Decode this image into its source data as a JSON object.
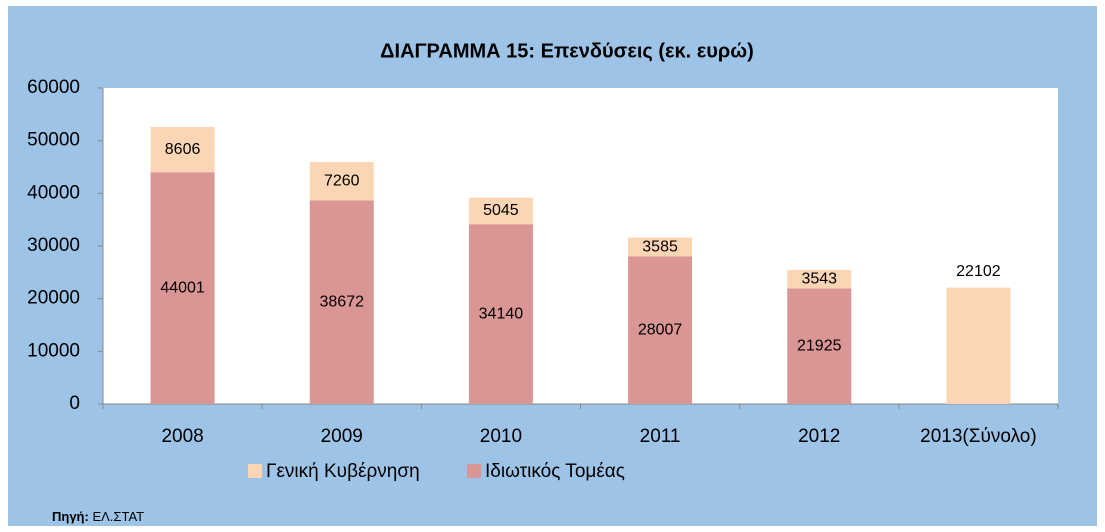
{
  "chart_data": {
    "type": "stacked_bar",
    "title": "ΔΙΑΓΡΑΜΜΑ 15: Επενδύσεις (εκ. ευρώ)",
    "categories": [
      "2008",
      "2009",
      "2010",
      "2011",
      "2012",
      "2013(Σύνολο)"
    ],
    "series": [
      {
        "name": "Γενική Κυβέρνηση",
        "color": "#FCD5B5",
        "values": [
          8606,
          7260,
          5045,
          3585,
          3543,
          22102
        ]
      },
      {
        "name": "Ιδιωτικός Τομέας",
        "color": "#D99694",
        "values": [
          44001,
          38672,
          34140,
          28007,
          21925,
          null
        ]
      }
    ],
    "ylim": [
      0,
      60000
    ],
    "yticks": [
      0,
      10000,
      20000,
      30000,
      40000,
      50000,
      60000
    ],
    "grid": false,
    "legend": "bottom",
    "source_label": "Πηγή:",
    "source": "ΕΛ.ΣΤΑΤ"
  }
}
